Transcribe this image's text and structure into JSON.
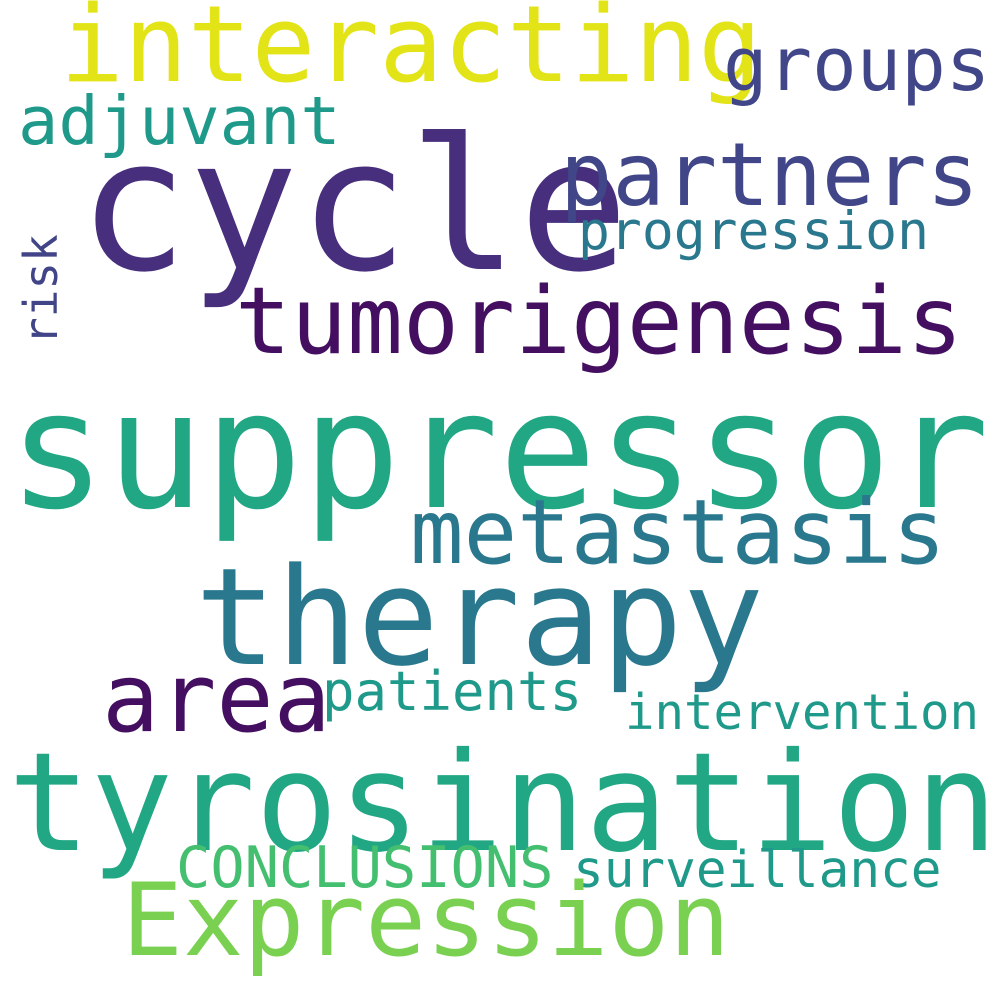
{
  "words": {
    "interacting": {
      "text": "interacting",
      "color": "#e2e418"
    },
    "groups": {
      "text": "groups",
      "color": "#404688"
    },
    "adjuvant": {
      "text": "adjuvant",
      "color": "#1f9a8a"
    },
    "cycle": {
      "text": "cycle",
      "color": "#472f7d"
    },
    "partners": {
      "text": "partners",
      "color": "#404688"
    },
    "progression": {
      "text": "progression",
      "color": "#2a788e"
    },
    "risk": {
      "text": "risk",
      "color": "#414487"
    },
    "tumorigenesis": {
      "text": "tumorigenesis",
      "color": "#440f60"
    },
    "suppressor": {
      "text": "suppressor",
      "color": "#22a785"
    },
    "metastasis": {
      "text": "metastasis",
      "color": "#2a788e"
    },
    "therapy": {
      "text": "therapy",
      "color": "#2a788e"
    },
    "area": {
      "text": "area",
      "color": "#440f60"
    },
    "patients": {
      "text": "patients",
      "color": "#1f9a8a"
    },
    "intervention": {
      "text": "intervention",
      "color": "#1f9a8a"
    },
    "tyrosination": {
      "text": "tyrosination",
      "color": "#22a785"
    },
    "conclusions": {
      "text": "CONCLUSIONS",
      "color": "#44bf70"
    },
    "surveillance": {
      "text": "surveillance",
      "color": "#1f9a8a"
    },
    "expression": {
      "text": "Expression",
      "color": "#7ad151"
    }
  }
}
